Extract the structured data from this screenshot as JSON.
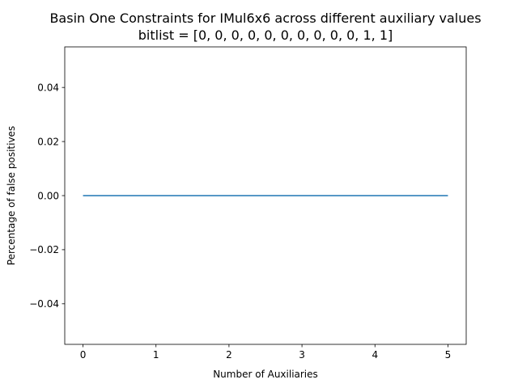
{
  "chart_data": {
    "type": "line",
    "title": "Basin One Constraints for IMul6x6 across different auxiliary values",
    "subtitle": "bitlist = [0, 0, 0, 0, 0, 0, 0, 0, 0, 0, 1, 1]",
    "xlabel": "Number of Auxiliaries",
    "ylabel": "Percentage of false positives",
    "xlim": [
      -0.25,
      5.25
    ],
    "ylim": [
      -0.055,
      0.055
    ],
    "xticks": [
      0,
      1,
      2,
      3,
      4,
      5
    ],
    "yticks": [
      -0.04,
      -0.02,
      0.0,
      0.02,
      0.04
    ],
    "xtick_labels": [
      "0",
      "1",
      "2",
      "3",
      "4",
      "5"
    ],
    "ytick_labels": [
      "−0.04",
      "−0.02",
      "0.00",
      "0.02",
      "0.04"
    ],
    "grid": false,
    "series": [
      {
        "color": "#1f77b4",
        "x": [
          0,
          1,
          2,
          3,
          4,
          5
        ],
        "y": [
          0,
          0,
          0,
          0,
          0,
          0
        ]
      }
    ]
  }
}
